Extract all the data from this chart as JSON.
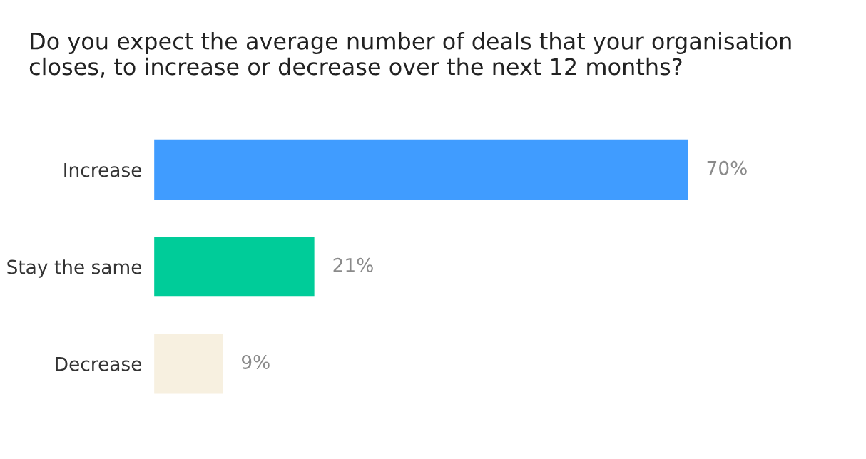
{
  "chart_data": {
    "type": "bar",
    "orientation": "horizontal",
    "title": "Do you expect the average number of deals that your organisation closes, to increase or decrease over the next 12 months?",
    "categories": [
      "Increase",
      "Stay the same",
      "Decrease"
    ],
    "values": [
      70,
      21,
      9
    ],
    "colors": [
      "#409cff",
      "#00cc99",
      "#f7f0e0"
    ],
    "value_labels": [
      "70%",
      "21%",
      "9%"
    ],
    "tick_labels": "y",
    "grid": false
  }
}
